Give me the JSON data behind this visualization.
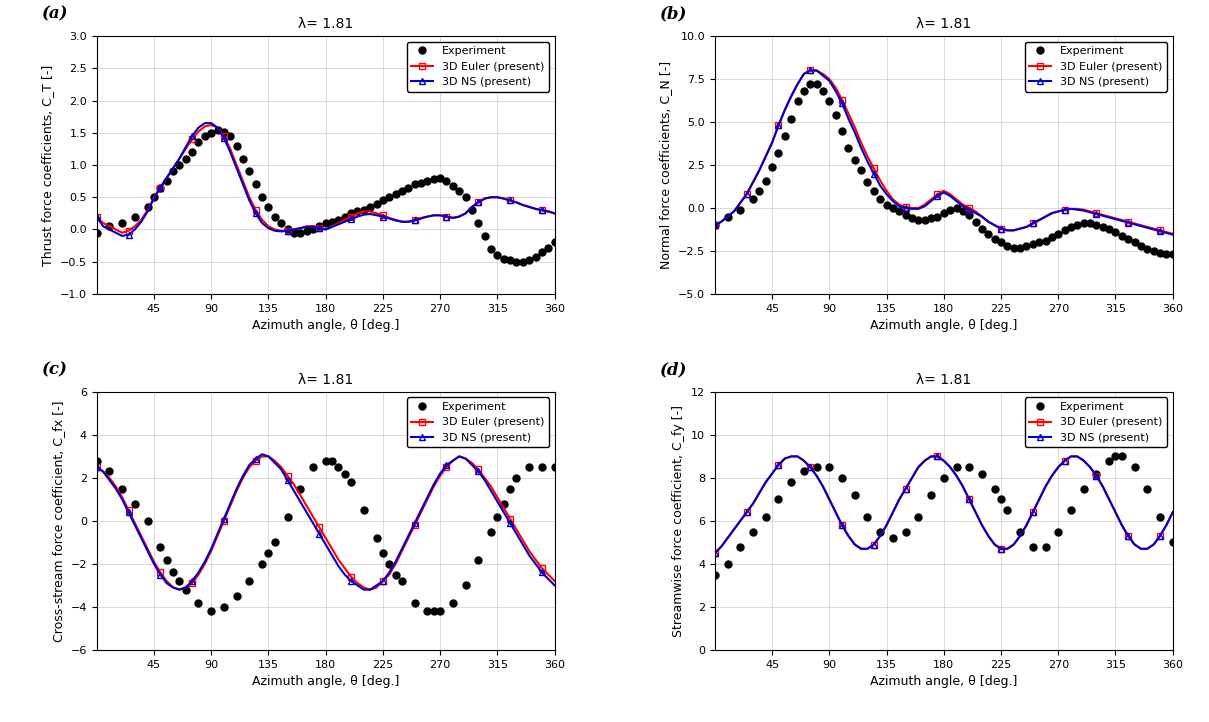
{
  "title": "λ= 1.81",
  "xlabel": "Azimuth angle, θ [deg.]",
  "xlim": [
    0,
    360
  ],
  "xticks": [
    45,
    90,
    135,
    180,
    225,
    270,
    315,
    360
  ],
  "panel_a": {
    "ylabel": "Thrust force coefficients, C_T [-]",
    "ylim": [
      -1,
      3
    ],
    "yticks": [
      -1,
      -0.5,
      0,
      0.5,
      1,
      1.5,
      2,
      2.5,
      3
    ],
    "euler_x": [
      0,
      5,
      10,
      15,
      20,
      25,
      30,
      35,
      40,
      45,
      50,
      55,
      60,
      65,
      70,
      75,
      80,
      85,
      90,
      95,
      100,
      105,
      110,
      115,
      120,
      125,
      130,
      135,
      140,
      145,
      150,
      155,
      160,
      165,
      170,
      175,
      180,
      185,
      190,
      195,
      200,
      205,
      210,
      215,
      220,
      225,
      230,
      235,
      240,
      245,
      250,
      255,
      260,
      265,
      270,
      275,
      280,
      285,
      290,
      295,
      300,
      305,
      310,
      315,
      320,
      325,
      330,
      335,
      340,
      345,
      350,
      355,
      360
    ],
    "euler_y": [
      0.2,
      0.1,
      0.05,
      0.0,
      -0.05,
      -0.02,
      0.05,
      0.15,
      0.3,
      0.5,
      0.65,
      0.8,
      0.95,
      1.1,
      1.25,
      1.4,
      1.52,
      1.6,
      1.62,
      1.58,
      1.45,
      1.25,
      1.0,
      0.75,
      0.5,
      0.3,
      0.15,
      0.05,
      0.0,
      -0.02,
      -0.02,
      0.0,
      0.02,
      0.05,
      0.05,
      0.03,
      0.0,
      0.05,
      0.1,
      0.15,
      0.2,
      0.25,
      0.28,
      0.28,
      0.25,
      0.22,
      0.18,
      0.15,
      0.12,
      0.12,
      0.15,
      0.18,
      0.2,
      0.22,
      0.22,
      0.2,
      0.18,
      0.2,
      0.25,
      0.35,
      0.42,
      0.48,
      0.5,
      0.5,
      0.48,
      0.45,
      0.42,
      0.38,
      0.35,
      0.32,
      0.3,
      0.28,
      0.25
    ],
    "ns_x": [
      0,
      5,
      10,
      15,
      20,
      25,
      30,
      35,
      40,
      45,
      50,
      55,
      60,
      65,
      70,
      75,
      80,
      85,
      90,
      95,
      100,
      105,
      110,
      115,
      120,
      125,
      130,
      135,
      140,
      145,
      150,
      155,
      160,
      165,
      170,
      175,
      180,
      185,
      190,
      195,
      200,
      205,
      210,
      215,
      220,
      225,
      230,
      235,
      240,
      245,
      250,
      255,
      260,
      265,
      270,
      275,
      280,
      285,
      290,
      295,
      300,
      305,
      310,
      315,
      320,
      325,
      330,
      335,
      340,
      345,
      350,
      355,
      360
    ],
    "ns_y": [
      0.2,
      0.05,
      0.0,
      -0.05,
      -0.1,
      -0.08,
      0.0,
      0.12,
      0.28,
      0.48,
      0.65,
      0.8,
      0.95,
      1.1,
      1.28,
      1.45,
      1.58,
      1.65,
      1.65,
      1.58,
      1.42,
      1.2,
      0.95,
      0.7,
      0.45,
      0.25,
      0.1,
      0.02,
      -0.02,
      -0.03,
      -0.02,
      0.0,
      0.02,
      0.04,
      0.04,
      0.02,
      0.0,
      0.04,
      0.08,
      0.12,
      0.16,
      0.2,
      0.23,
      0.24,
      0.22,
      0.2,
      0.17,
      0.14,
      0.12,
      0.12,
      0.14,
      0.17,
      0.2,
      0.22,
      0.22,
      0.2,
      0.18,
      0.2,
      0.25,
      0.35,
      0.42,
      0.48,
      0.5,
      0.5,
      0.48,
      0.45,
      0.42,
      0.38,
      0.35,
      0.32,
      0.3,
      0.28,
      0.25
    ],
    "exp_x": [
      0,
      10,
      20,
      30,
      40,
      45,
      50,
      55,
      60,
      65,
      70,
      75,
      80,
      85,
      90,
      95,
      100,
      105,
      110,
      115,
      120,
      125,
      130,
      135,
      140,
      145,
      150,
      155,
      160,
      165,
      170,
      175,
      180,
      185,
      190,
      195,
      200,
      205,
      210,
      215,
      220,
      225,
      230,
      235,
      240,
      245,
      250,
      255,
      260,
      265,
      270,
      275,
      280,
      285,
      290,
      295,
      300,
      305,
      310,
      315,
      320,
      325,
      330,
      335,
      340,
      345,
      350,
      355,
      360
    ],
    "exp_y": [
      -0.05,
      0.05,
      0.1,
      0.2,
      0.35,
      0.5,
      0.65,
      0.75,
      0.9,
      1.0,
      1.1,
      1.2,
      1.35,
      1.45,
      1.5,
      1.55,
      1.52,
      1.45,
      1.3,
      1.1,
      0.9,
      0.7,
      0.5,
      0.35,
      0.2,
      0.1,
      0.0,
      -0.05,
      -0.05,
      -0.02,
      0.0,
      0.05,
      0.1,
      0.12,
      0.15,
      0.2,
      0.25,
      0.28,
      0.3,
      0.35,
      0.4,
      0.45,
      0.5,
      0.55,
      0.6,
      0.65,
      0.7,
      0.72,
      0.75,
      0.78,
      0.8,
      0.75,
      0.68,
      0.6,
      0.5,
      0.3,
      0.1,
      -0.1,
      -0.3,
      -0.4,
      -0.45,
      -0.48,
      -0.5,
      -0.5,
      -0.48,
      -0.42,
      -0.35,
      -0.28,
      -0.2
    ]
  },
  "panel_b": {
    "ylabel": "Normal force coefficients, C_N [-]",
    "ylim": [
      -5,
      10
    ],
    "yticks": [
      -5,
      -2.5,
      0,
      2.5,
      5,
      7.5,
      10
    ],
    "euler_x": [
      0,
      5,
      10,
      15,
      20,
      25,
      30,
      35,
      40,
      45,
      50,
      55,
      60,
      65,
      70,
      75,
      80,
      85,
      90,
      95,
      100,
      105,
      110,
      115,
      120,
      125,
      130,
      135,
      140,
      145,
      150,
      155,
      160,
      165,
      170,
      175,
      180,
      185,
      190,
      195,
      200,
      205,
      210,
      215,
      220,
      225,
      230,
      235,
      240,
      245,
      250,
      255,
      260,
      265,
      270,
      275,
      280,
      285,
      290,
      295,
      300,
      305,
      310,
      315,
      320,
      325,
      330,
      335,
      340,
      345,
      350,
      355,
      360
    ],
    "euler_y": [
      -1.0,
      -0.8,
      -0.5,
      -0.2,
      0.3,
      0.8,
      1.5,
      2.2,
      3.0,
      3.8,
      4.8,
      5.7,
      6.5,
      7.2,
      7.8,
      8.0,
      8.0,
      7.8,
      7.5,
      7.0,
      6.3,
      5.5,
      4.7,
      3.8,
      3.0,
      2.3,
      1.6,
      1.0,
      0.5,
      0.2,
      0.05,
      0.0,
      0.0,
      0.2,
      0.5,
      0.8,
      1.0,
      0.8,
      0.5,
      0.2,
      0.0,
      -0.2,
      -0.5,
      -0.8,
      -1.0,
      -1.2,
      -1.3,
      -1.3,
      -1.2,
      -1.1,
      -0.9,
      -0.7,
      -0.5,
      -0.3,
      -0.2,
      -0.1,
      -0.05,
      -0.05,
      -0.1,
      -0.2,
      -0.3,
      -0.4,
      -0.5,
      -0.6,
      -0.7,
      -0.8,
      -0.9,
      -1.0,
      -1.1,
      -1.2,
      -1.3,
      -1.4,
      -1.5
    ],
    "ns_x": [
      0,
      5,
      10,
      15,
      20,
      25,
      30,
      35,
      40,
      45,
      50,
      55,
      60,
      65,
      70,
      75,
      80,
      85,
      90,
      95,
      100,
      105,
      110,
      115,
      120,
      125,
      130,
      135,
      140,
      145,
      150,
      155,
      160,
      165,
      170,
      175,
      180,
      185,
      190,
      195,
      200,
      205,
      210,
      215,
      220,
      225,
      230,
      235,
      240,
      245,
      250,
      255,
      260,
      265,
      270,
      275,
      280,
      285,
      290,
      295,
      300,
      305,
      310,
      315,
      320,
      325,
      330,
      335,
      340,
      345,
      350,
      355,
      360
    ],
    "ns_y": [
      -1.0,
      -0.8,
      -0.5,
      -0.2,
      0.3,
      0.8,
      1.5,
      2.2,
      3.0,
      3.8,
      4.8,
      5.7,
      6.5,
      7.2,
      7.8,
      8.0,
      8.0,
      7.7,
      7.4,
      6.8,
      6.1,
      5.2,
      4.4,
      3.5,
      2.7,
      2.0,
      1.3,
      0.8,
      0.4,
      0.1,
      0.0,
      -0.05,
      -0.05,
      0.1,
      0.4,
      0.7,
      0.9,
      0.7,
      0.4,
      0.1,
      -0.1,
      -0.3,
      -0.5,
      -0.8,
      -1.0,
      -1.2,
      -1.3,
      -1.3,
      -1.2,
      -1.1,
      -0.9,
      -0.7,
      -0.5,
      -0.3,
      -0.2,
      -0.1,
      -0.05,
      -0.1,
      -0.15,
      -0.25,
      -0.35,
      -0.45,
      -0.55,
      -0.65,
      -0.75,
      -0.85,
      -0.95,
      -1.05,
      -1.15,
      -1.25,
      -1.35,
      -1.45,
      -1.55
    ],
    "exp_x": [
      0,
      10,
      20,
      30,
      35,
      40,
      45,
      50,
      55,
      60,
      65,
      70,
      75,
      80,
      85,
      90,
      95,
      100,
      105,
      110,
      115,
      120,
      125,
      130,
      135,
      140,
      145,
      150,
      155,
      160,
      165,
      170,
      175,
      180,
      185,
      190,
      195,
      200,
      205,
      210,
      215,
      220,
      225,
      230,
      235,
      240,
      245,
      250,
      255,
      260,
      265,
      270,
      275,
      280,
      285,
      290,
      295,
      300,
      305,
      310,
      315,
      320,
      325,
      330,
      335,
      340,
      345,
      350,
      355,
      360
    ],
    "exp_y": [
      -1.0,
      -0.5,
      -0.1,
      0.5,
      1.0,
      1.6,
      2.4,
      3.2,
      4.2,
      5.2,
      6.2,
      6.8,
      7.2,
      7.2,
      6.8,
      6.2,
      5.4,
      4.5,
      3.5,
      2.8,
      2.2,
      1.5,
      1.0,
      0.5,
      0.2,
      0.0,
      -0.2,
      -0.4,
      -0.6,
      -0.7,
      -0.7,
      -0.6,
      -0.5,
      -0.3,
      -0.1,
      0.0,
      -0.2,
      -0.4,
      -0.8,
      -1.2,
      -1.5,
      -1.8,
      -2.0,
      -2.2,
      -2.3,
      -2.3,
      -2.2,
      -2.1,
      -2.0,
      -1.9,
      -1.7,
      -1.5,
      -1.3,
      -1.1,
      -1.0,
      -0.9,
      -0.9,
      -1.0,
      -1.1,
      -1.2,
      -1.4,
      -1.6,
      -1.8,
      -2.0,
      -2.2,
      -2.4,
      -2.5,
      -2.6,
      -2.7,
      -2.7
    ]
  },
  "panel_c": {
    "ylabel": "Cross-stream force coefficient, C_fx [-]",
    "ylim": [
      -6,
      6
    ],
    "yticks": [
      -6,
      -4,
      -2,
      0,
      2,
      4,
      6
    ],
    "euler_x": [
      0,
      5,
      10,
      15,
      20,
      25,
      30,
      35,
      40,
      45,
      50,
      55,
      60,
      65,
      70,
      75,
      80,
      85,
      90,
      95,
      100,
      105,
      110,
      115,
      120,
      125,
      130,
      135,
      140,
      145,
      150,
      155,
      160,
      165,
      170,
      175,
      180,
      185,
      190,
      195,
      200,
      205,
      210,
      215,
      220,
      225,
      230,
      235,
      240,
      245,
      250,
      255,
      260,
      265,
      270,
      275,
      280,
      285,
      290,
      295,
      300,
      305,
      310,
      315,
      320,
      325,
      330,
      335,
      340,
      345,
      350,
      355,
      360
    ],
    "euler_y": [
      2.5,
      2.3,
      2.0,
      1.6,
      1.1,
      0.5,
      -0.1,
      -0.7,
      -1.3,
      -1.9,
      -2.4,
      -2.8,
      -3.1,
      -3.2,
      -3.1,
      -2.9,
      -2.5,
      -2.0,
      -1.4,
      -0.7,
      0.0,
      0.7,
      1.4,
      2.0,
      2.5,
      2.8,
      3.0,
      3.0,
      2.8,
      2.5,
      2.1,
      1.7,
      1.2,
      0.7,
      0.2,
      -0.3,
      -0.8,
      -1.3,
      -1.8,
      -2.2,
      -2.6,
      -2.9,
      -3.1,
      -3.2,
      -3.1,
      -2.8,
      -2.5,
      -2.0,
      -1.4,
      -0.8,
      -0.2,
      0.4,
      1.0,
      1.6,
      2.1,
      2.5,
      2.8,
      3.0,
      2.9,
      2.7,
      2.4,
      2.0,
      1.6,
      1.1,
      0.6,
      0.1,
      -0.4,
      -0.9,
      -1.4,
      -1.8,
      -2.2,
      -2.5,
      -2.8
    ],
    "ns_x": [
      0,
      5,
      10,
      15,
      20,
      25,
      30,
      35,
      40,
      45,
      50,
      55,
      60,
      65,
      70,
      75,
      80,
      85,
      90,
      95,
      100,
      105,
      110,
      115,
      120,
      125,
      130,
      135,
      140,
      145,
      150,
      155,
      160,
      165,
      170,
      175,
      180,
      185,
      190,
      195,
      200,
      205,
      210,
      215,
      220,
      225,
      230,
      235,
      240,
      245,
      250,
      255,
      260,
      265,
      270,
      275,
      280,
      285,
      290,
      295,
      300,
      305,
      310,
      315,
      320,
      325,
      330,
      335,
      340,
      345,
      350,
      355,
      360
    ],
    "ns_y": [
      2.5,
      2.3,
      1.9,
      1.5,
      1.0,
      0.4,
      -0.2,
      -0.8,
      -1.4,
      -2.0,
      -2.5,
      -2.9,
      -3.1,
      -3.2,
      -3.1,
      -2.8,
      -2.4,
      -1.9,
      -1.3,
      -0.6,
      0.1,
      0.8,
      1.5,
      2.1,
      2.6,
      2.9,
      3.1,
      3.0,
      2.7,
      2.4,
      1.9,
      1.4,
      0.9,
      0.4,
      -0.1,
      -0.6,
      -1.1,
      -1.6,
      -2.1,
      -2.5,
      -2.8,
      -3.0,
      -3.2,
      -3.2,
      -3.0,
      -2.8,
      -2.4,
      -1.9,
      -1.3,
      -0.7,
      -0.1,
      0.5,
      1.1,
      1.7,
      2.2,
      2.6,
      2.8,
      3.0,
      2.9,
      2.6,
      2.3,
      1.9,
      1.4,
      0.9,
      0.4,
      -0.1,
      -0.6,
      -1.1,
      -1.6,
      -2.0,
      -2.4,
      -2.7,
      -3.0
    ],
    "exp_x": [
      0,
      10,
      20,
      30,
      40,
      50,
      55,
      60,
      65,
      70,
      80,
      90,
      100,
      110,
      120,
      130,
      135,
      140,
      150,
      160,
      170,
      180,
      185,
      190,
      195,
      200,
      210,
      220,
      225,
      230,
      235,
      240,
      250,
      260,
      265,
      270,
      280,
      290,
      300,
      310,
      315,
      320,
      325,
      330,
      340,
      350,
      360
    ],
    "exp_y": [
      2.8,
      2.3,
      1.5,
      0.8,
      0.0,
      -1.2,
      -1.8,
      -2.4,
      -2.8,
      -3.2,
      -3.8,
      -4.2,
      -4.0,
      -3.5,
      -2.8,
      -2.0,
      -1.5,
      -1.0,
      0.2,
      1.5,
      2.5,
      2.8,
      2.8,
      2.5,
      2.2,
      1.8,
      0.5,
      -0.8,
      -1.5,
      -2.0,
      -2.5,
      -2.8,
      -3.8,
      -4.2,
      -4.2,
      -4.2,
      -3.8,
      -3.0,
      -1.8,
      -0.5,
      0.2,
      0.8,
      1.5,
      2.0,
      2.5,
      2.5,
      2.5
    ]
  },
  "panel_d": {
    "ylabel": "Streamwise force coefficient, C_fy [-]",
    "ylim": [
      0,
      12
    ],
    "yticks": [
      0,
      2,
      4,
      6,
      8,
      10,
      12
    ],
    "euler_x": [
      0,
      5,
      10,
      15,
      20,
      25,
      30,
      35,
      40,
      45,
      50,
      55,
      60,
      65,
      70,
      75,
      80,
      85,
      90,
      95,
      100,
      105,
      110,
      115,
      120,
      125,
      130,
      135,
      140,
      145,
      150,
      155,
      160,
      165,
      170,
      175,
      180,
      185,
      190,
      195,
      200,
      205,
      210,
      215,
      220,
      225,
      230,
      235,
      240,
      245,
      250,
      255,
      260,
      265,
      270,
      275,
      280,
      285,
      290,
      295,
      300,
      305,
      310,
      315,
      320,
      325,
      330,
      335,
      340,
      345,
      350,
      355,
      360
    ],
    "euler_y": [
      4.5,
      4.8,
      5.2,
      5.6,
      6.0,
      6.4,
      6.8,
      7.3,
      7.8,
      8.2,
      8.6,
      8.9,
      9.0,
      9.0,
      8.8,
      8.5,
      8.1,
      7.6,
      7.0,
      6.4,
      5.8,
      5.3,
      4.9,
      4.7,
      4.7,
      4.9,
      5.3,
      5.8,
      6.4,
      7.0,
      7.5,
      8.0,
      8.5,
      8.8,
      9.0,
      9.0,
      8.8,
      8.5,
      8.1,
      7.6,
      7.0,
      6.4,
      5.8,
      5.3,
      4.9,
      4.7,
      4.7,
      4.9,
      5.3,
      5.8,
      6.4,
      7.0,
      7.6,
      8.1,
      8.5,
      8.8,
      9.0,
      9.0,
      8.8,
      8.5,
      8.1,
      7.6,
      7.0,
      6.4,
      5.8,
      5.3,
      4.9,
      4.7,
      4.7,
      4.9,
      5.3,
      5.8,
      6.4
    ],
    "ns_x": [
      0,
      5,
      10,
      15,
      20,
      25,
      30,
      35,
      40,
      45,
      50,
      55,
      60,
      65,
      70,
      75,
      80,
      85,
      90,
      95,
      100,
      105,
      110,
      115,
      120,
      125,
      130,
      135,
      140,
      145,
      150,
      155,
      160,
      165,
      170,
      175,
      180,
      185,
      190,
      195,
      200,
      205,
      210,
      215,
      220,
      225,
      230,
      235,
      240,
      245,
      250,
      255,
      260,
      265,
      270,
      275,
      280,
      285,
      290,
      295,
      300,
      305,
      310,
      315,
      320,
      325,
      330,
      335,
      340,
      345,
      350,
      355,
      360
    ],
    "ns_y": [
      4.5,
      4.8,
      5.2,
      5.6,
      6.0,
      6.4,
      6.8,
      7.3,
      7.8,
      8.2,
      8.6,
      8.9,
      9.0,
      9.0,
      8.8,
      8.5,
      8.1,
      7.6,
      7.0,
      6.4,
      5.8,
      5.3,
      4.9,
      4.7,
      4.7,
      4.9,
      5.3,
      5.8,
      6.4,
      7.0,
      7.5,
      8.0,
      8.5,
      8.8,
      9.0,
      9.0,
      8.8,
      8.5,
      8.1,
      7.6,
      7.0,
      6.4,
      5.8,
      5.3,
      4.9,
      4.7,
      4.7,
      4.9,
      5.3,
      5.8,
      6.4,
      7.0,
      7.6,
      8.1,
      8.5,
      8.8,
      9.0,
      9.0,
      8.8,
      8.5,
      8.1,
      7.6,
      7.0,
      6.4,
      5.8,
      5.3,
      4.9,
      4.7,
      4.7,
      4.9,
      5.3,
      5.8,
      6.4
    ],
    "exp_x": [
      0,
      10,
      20,
      30,
      40,
      50,
      60,
      70,
      80,
      90,
      100,
      110,
      120,
      130,
      140,
      150,
      160,
      170,
      180,
      190,
      200,
      210,
      220,
      225,
      230,
      240,
      250,
      260,
      270,
      280,
      290,
      300,
      310,
      315,
      320,
      330,
      340,
      350,
      360
    ],
    "exp_y": [
      3.5,
      4.0,
      4.8,
      5.5,
      6.2,
      7.0,
      7.8,
      8.3,
      8.5,
      8.5,
      8.0,
      7.2,
      6.2,
      5.5,
      5.2,
      5.5,
      6.2,
      7.2,
      8.0,
      8.5,
      8.5,
      8.2,
      7.5,
      7.0,
      6.5,
      5.5,
      4.8,
      4.8,
      5.5,
      6.5,
      7.5,
      8.2,
      8.8,
      9.0,
      9.0,
      8.5,
      7.5,
      6.2,
      5.0
    ]
  },
  "euler_color": "#FF0000",
  "ns_color": "#0000CC",
  "exp_color": "#000000",
  "euler_marker": "s",
  "ns_marker": "^",
  "exp_marker": "o",
  "marker_size": 4,
  "line_width": 1.5,
  "background_color": "#ffffff",
  "grid_color": "#cccccc",
  "label_fontsize": 9,
  "tick_fontsize": 8,
  "title_fontsize": 10,
  "legend_fontsize": 8,
  "panel_labels": [
    "(a)",
    "(b)",
    "(c)",
    "(d)"
  ]
}
